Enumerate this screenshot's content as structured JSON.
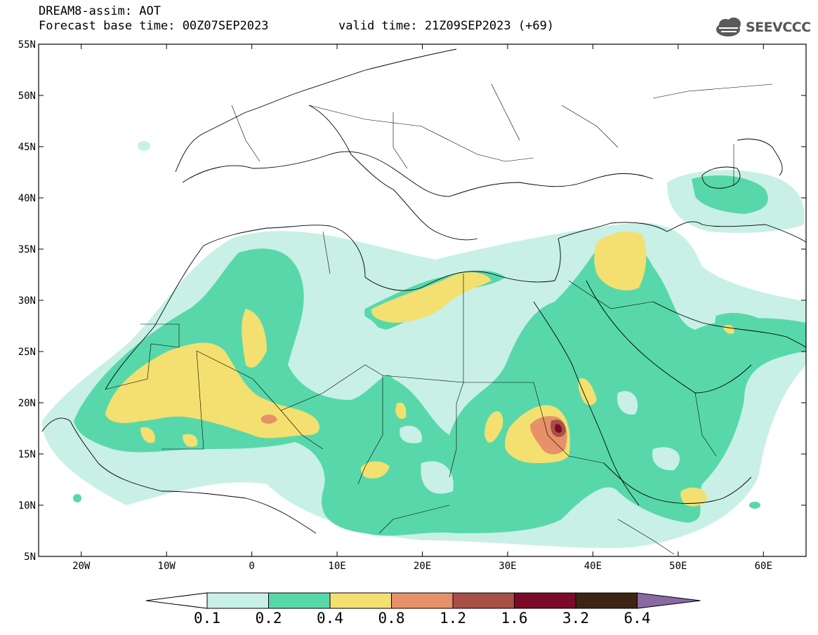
{
  "header": {
    "line1": "DREAM8-assim: AOT",
    "line2": "Forecast base time: 00Z07SEP2023",
    "line3": "valid time: 21Z09SEP2023 (+69)"
  },
  "logo": {
    "text": "SEEVCCC",
    "icon": "cloud-icon"
  },
  "map": {
    "lon_range": [
      -25,
      65
    ],
    "lat_range": [
      5,
      55
    ],
    "lat_labels": [
      "5N",
      "10N",
      "15N",
      "20N",
      "25N",
      "30N",
      "35N",
      "40N",
      "45N",
      "50N",
      "55N"
    ],
    "lon_labels": [
      "20W",
      "10W",
      "0",
      "10E",
      "20E",
      "30E",
      "40E",
      "50E",
      "60E"
    ]
  },
  "colorbar": {
    "labels": [
      "0.1",
      "0.2",
      "0.4",
      "0.8",
      "1.2",
      "1.6",
      "3.2",
      "6.4"
    ],
    "colors": [
      "#ffffff",
      "#c8f0e6",
      "#58d8aa",
      "#f3e070",
      "#e7916a",
      "#a84f47",
      "#7c0a26",
      "#3d2414",
      "#8a6aa3"
    ]
  }
}
